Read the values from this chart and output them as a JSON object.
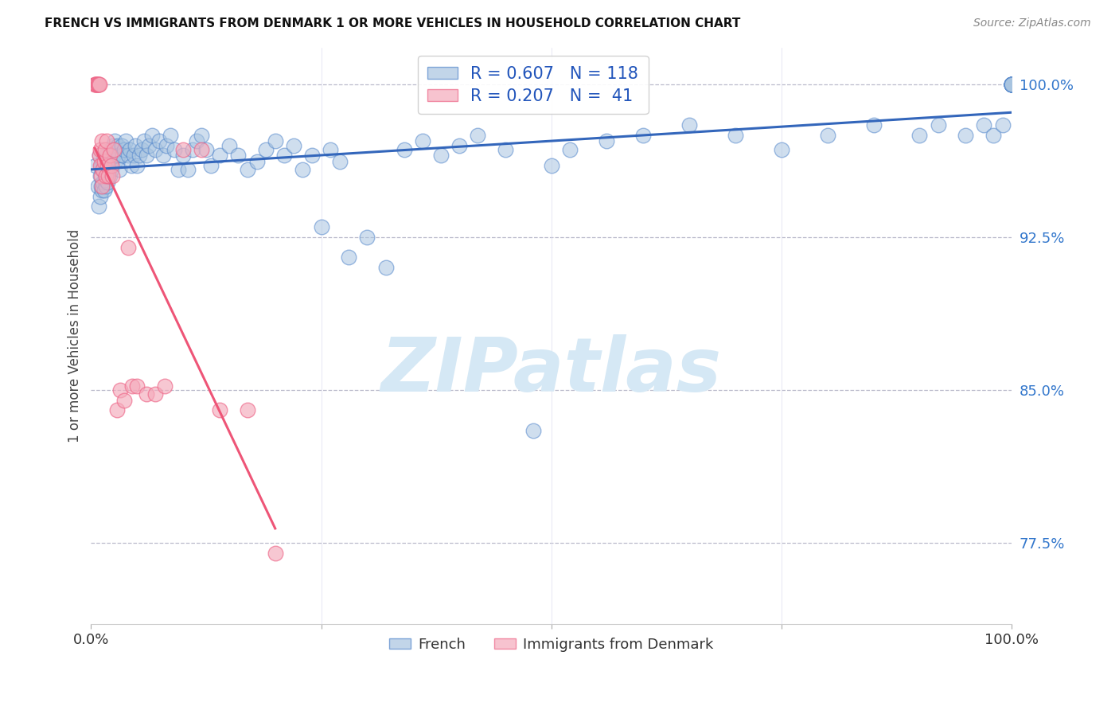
{
  "title": "FRENCH VS IMMIGRANTS FROM DENMARK 1 OR MORE VEHICLES IN HOUSEHOLD CORRELATION CHART",
  "source": "Source: ZipAtlas.com",
  "ylabel": "1 or more Vehicles in Household",
  "legend_french": "French",
  "legend_denmark": "Immigrants from Denmark",
  "r_french": 0.607,
  "n_french": 118,
  "r_denmark": 0.207,
  "n_denmark": 41,
  "yaxis_labels": [
    "100.0%",
    "92.5%",
    "85.0%",
    "77.5%"
  ],
  "yaxis_values": [
    1.0,
    0.925,
    0.85,
    0.775
  ],
  "xlim": [
    0.0,
    1.0
  ],
  "ylim": [
    0.735,
    1.018
  ],
  "french_color": "#A8C4E0",
  "denmark_color": "#F4AABB",
  "french_edge_color": "#5588CC",
  "denmark_edge_color": "#EE6688",
  "french_line_color": "#3366BB",
  "denmark_line_color": "#EE5577",
  "background_color": "#FFFFFF",
  "french_x": [
    0.005,
    0.007,
    0.008,
    0.009,
    0.01,
    0.01,
    0.011,
    0.011,
    0.012,
    0.012,
    0.013,
    0.013,
    0.014,
    0.014,
    0.015,
    0.015,
    0.016,
    0.016,
    0.017,
    0.017,
    0.018,
    0.018,
    0.019,
    0.02,
    0.02,
    0.021,
    0.022,
    0.022,
    0.023,
    0.024,
    0.025,
    0.026,
    0.027,
    0.028,
    0.029,
    0.03,
    0.031,
    0.033,
    0.034,
    0.036,
    0.038,
    0.04,
    0.042,
    0.044,
    0.046,
    0.048,
    0.05,
    0.052,
    0.055,
    0.058,
    0.06,
    0.063,
    0.066,
    0.07,
    0.074,
    0.078,
    0.082,
    0.086,
    0.09,
    0.095,
    0.1,
    0.105,
    0.11,
    0.115,
    0.12,
    0.125,
    0.13,
    0.14,
    0.15,
    0.16,
    0.17,
    0.18,
    0.19,
    0.2,
    0.21,
    0.22,
    0.23,
    0.24,
    0.25,
    0.26,
    0.27,
    0.28,
    0.3,
    0.32,
    0.34,
    0.36,
    0.38,
    0.4,
    0.42,
    0.45,
    0.48,
    0.5,
    0.52,
    0.56,
    0.6,
    0.65,
    0.7,
    0.75,
    0.8,
    0.85,
    0.9,
    0.92,
    0.95,
    0.97,
    0.98,
    0.99,
    1.0,
    1.0,
    1.0,
    1.0,
    1.0,
    1.0,
    1.0,
    1.0,
    1.0,
    1.0,
    1.0,
    1.0
  ],
  "french_y": [
    0.96,
    0.95,
    0.94,
    0.965,
    0.955,
    0.945,
    0.96,
    0.95,
    0.958,
    0.948,
    0.962,
    0.952,
    0.958,
    0.948,
    0.963,
    0.953,
    0.96,
    0.95,
    0.965,
    0.955,
    0.962,
    0.952,
    0.958,
    0.965,
    0.955,
    0.962,
    0.968,
    0.958,
    0.963,
    0.97,
    0.965,
    0.972,
    0.968,
    0.963,
    0.97,
    0.965,
    0.958,
    0.97,
    0.965,
    0.968,
    0.972,
    0.965,
    0.968,
    0.96,
    0.965,
    0.97,
    0.96,
    0.965,
    0.968,
    0.972,
    0.965,
    0.97,
    0.975,
    0.968,
    0.972,
    0.965,
    0.97,
    0.975,
    0.968,
    0.958,
    0.965,
    0.958,
    0.968,
    0.972,
    0.975,
    0.968,
    0.96,
    0.965,
    0.97,
    0.965,
    0.958,
    0.962,
    0.968,
    0.972,
    0.965,
    0.97,
    0.958,
    0.965,
    0.93,
    0.968,
    0.962,
    0.915,
    0.925,
    0.91,
    0.968,
    0.972,
    0.965,
    0.97,
    0.975,
    0.968,
    0.83,
    0.96,
    0.968,
    0.972,
    0.975,
    0.98,
    0.975,
    0.968,
    0.975,
    0.98,
    0.975,
    0.98,
    0.975,
    0.98,
    0.975,
    0.98,
    1.0,
    1.0,
    1.0,
    1.0,
    1.0,
    1.0,
    1.0,
    1.0,
    1.0,
    1.0,
    1.0,
    1.0
  ],
  "denmark_x": [
    0.004,
    0.005,
    0.005,
    0.006,
    0.006,
    0.007,
    0.007,
    0.008,
    0.008,
    0.009,
    0.009,
    0.01,
    0.01,
    0.011,
    0.012,
    0.012,
    0.013,
    0.014,
    0.015,
    0.016,
    0.017,
    0.018,
    0.019,
    0.02,
    0.022,
    0.023,
    0.025,
    0.028,
    0.032,
    0.036,
    0.04,
    0.045,
    0.05,
    0.06,
    0.07,
    0.08,
    0.1,
    0.12,
    0.14,
    0.17,
    0.2
  ],
  "denmark_y": [
    1.0,
    1.0,
    1.0,
    1.0,
    1.0,
    1.0,
    1.0,
    1.0,
    1.0,
    1.0,
    0.965,
    0.968,
    0.96,
    0.955,
    0.972,
    0.95,
    0.958,
    0.962,
    0.968,
    0.955,
    0.972,
    0.96,
    0.955,
    0.965,
    0.96,
    0.955,
    0.968,
    0.84,
    0.85,
    0.845,
    0.92,
    0.852,
    0.852,
    0.848,
    0.848,
    0.852,
    0.968,
    0.968,
    0.84,
    0.84,
    0.77
  ],
  "watermark_text": "ZIPatlas",
  "watermark_color": "#D5E8F5"
}
